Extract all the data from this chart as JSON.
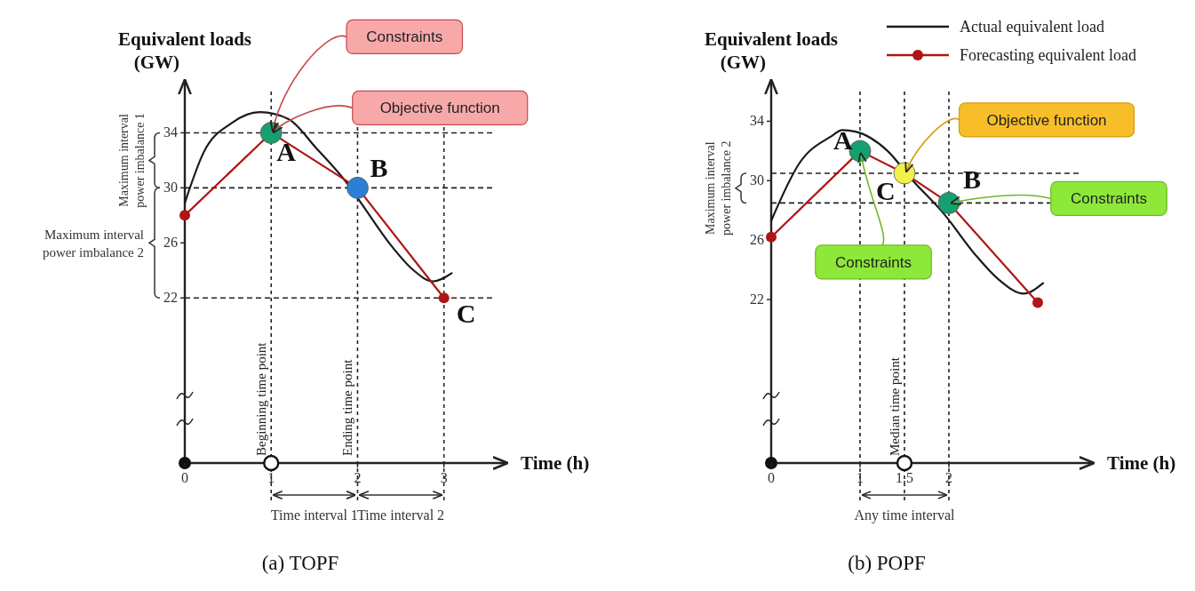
{
  "chart_data": [
    {
      "type": "line",
      "title": "(a) TOPF",
      "xlabel": "Time (h)",
      "ylabel": "Equivalent loads (GW)",
      "xlim": [
        0,
        3.6
      ],
      "xticks": [
        0,
        1,
        2,
        3
      ],
      "ylim": [
        10,
        37
      ],
      "yticks": [
        22,
        26,
        30,
        34
      ],
      "legend": false,
      "series": [
        {
          "color": "#1a1a1a",
          "marker": "none",
          "x": [
            0,
            0.22,
            0.54,
            0.87,
            1.2,
            1.52,
            1.87,
            2.04,
            2.39,
            2.65,
            2.87,
            3.09
          ],
          "values": [
            28.9,
            32.6,
            34.7,
            35.5,
            35,
            32.9,
            30.4,
            28.9,
            25.8,
            24,
            23.2,
            23.8
          ]
        },
        {
          "color": "#b01515",
          "marker": "circle",
          "x": [
            0,
            1,
            2,
            3
          ],
          "values": [
            28,
            34,
            30,
            22
          ],
          "colors": [
            "#b01515",
            "#16a070",
            "#2b7fd4",
            "#b01515"
          ]
        }
      ],
      "ref_lines": [
        {
          "axis": "y",
          "value": 34
        },
        {
          "axis": "y",
          "value": 30
        },
        {
          "axis": "y",
          "value": 22
        },
        {
          "axis": "x",
          "value": 1,
          "label": "Beginning time point"
        },
        {
          "axis": "x",
          "value": 2,
          "label": "Ending time point"
        },
        {
          "axis": "x",
          "value": 3
        }
      ],
      "annotations": [
        "Maximum interval power imbalance 1",
        "Maximum interval power imbalance 2",
        "Time interval 1",
        "Time interval 2",
        {
          "text": "A",
          "x": 1,
          "y": 34
        },
        {
          "text": "B",
          "x": 2,
          "y": 30
        },
        {
          "text": "C",
          "x": 3,
          "y": 22
        },
        "Constraints",
        "Objective function"
      ]
    },
    {
      "type": "line",
      "title": "(b) POPF",
      "xlabel": "Time (h)",
      "ylabel": "Equivalent loads (GW)",
      "xlim": [
        0,
        3.5
      ],
      "xticks": [
        0,
        1,
        1.5,
        2
      ],
      "ylim": [
        11,
        36
      ],
      "yticks": [
        22,
        26,
        30,
        34
      ],
      "legend": "top right",
      "series": [
        {
          "name": "Actual equivalent load",
          "color": "#1a1a1a",
          "marker": "none",
          "x": [
            0,
            0.32,
            0.68,
            0.8,
            0.95,
            1.31,
            1.58,
            1.94,
            2.3,
            2.57,
            2.84,
            3.06
          ],
          "values": [
            27.3,
            31.2,
            33,
            33.4,
            33.3,
            32,
            30.1,
            27.8,
            25,
            23.3,
            22.4,
            23.1
          ]
        },
        {
          "name": "Forecasting equivalent load",
          "color": "#b01515",
          "marker": "circle",
          "x": [
            0,
            1,
            1.5,
            2,
            3
          ],
          "values": [
            26.2,
            32,
            30.5,
            28.5,
            21.8
          ],
          "colors": [
            "#b01515",
            "#16a070",
            "#f2f04a",
            "#16a070",
            "#b01515"
          ]
        }
      ],
      "ref_lines": [
        {
          "axis": "y",
          "value": 30.5
        },
        {
          "axis": "y",
          "value": 28.5
        },
        {
          "axis": "x",
          "value": 1
        },
        {
          "axis": "x",
          "value": 1.5,
          "label": "Median time point"
        },
        {
          "axis": "x",
          "value": 2
        }
      ],
      "annotations": [
        "Maximum interval power imbalance 2",
        "Any time interval",
        {
          "text": "A",
          "x": 1,
          "y": 32
        },
        {
          "text": "C",
          "x": 1.5,
          "y": 30.5
        },
        {
          "text": "B",
          "x": 2,
          "y": 28.5
        },
        {
          "text": "Constraints",
          "x": 1,
          "y": 32
        },
        "Objective function",
        "Constraints"
      ]
    }
  ]
}
